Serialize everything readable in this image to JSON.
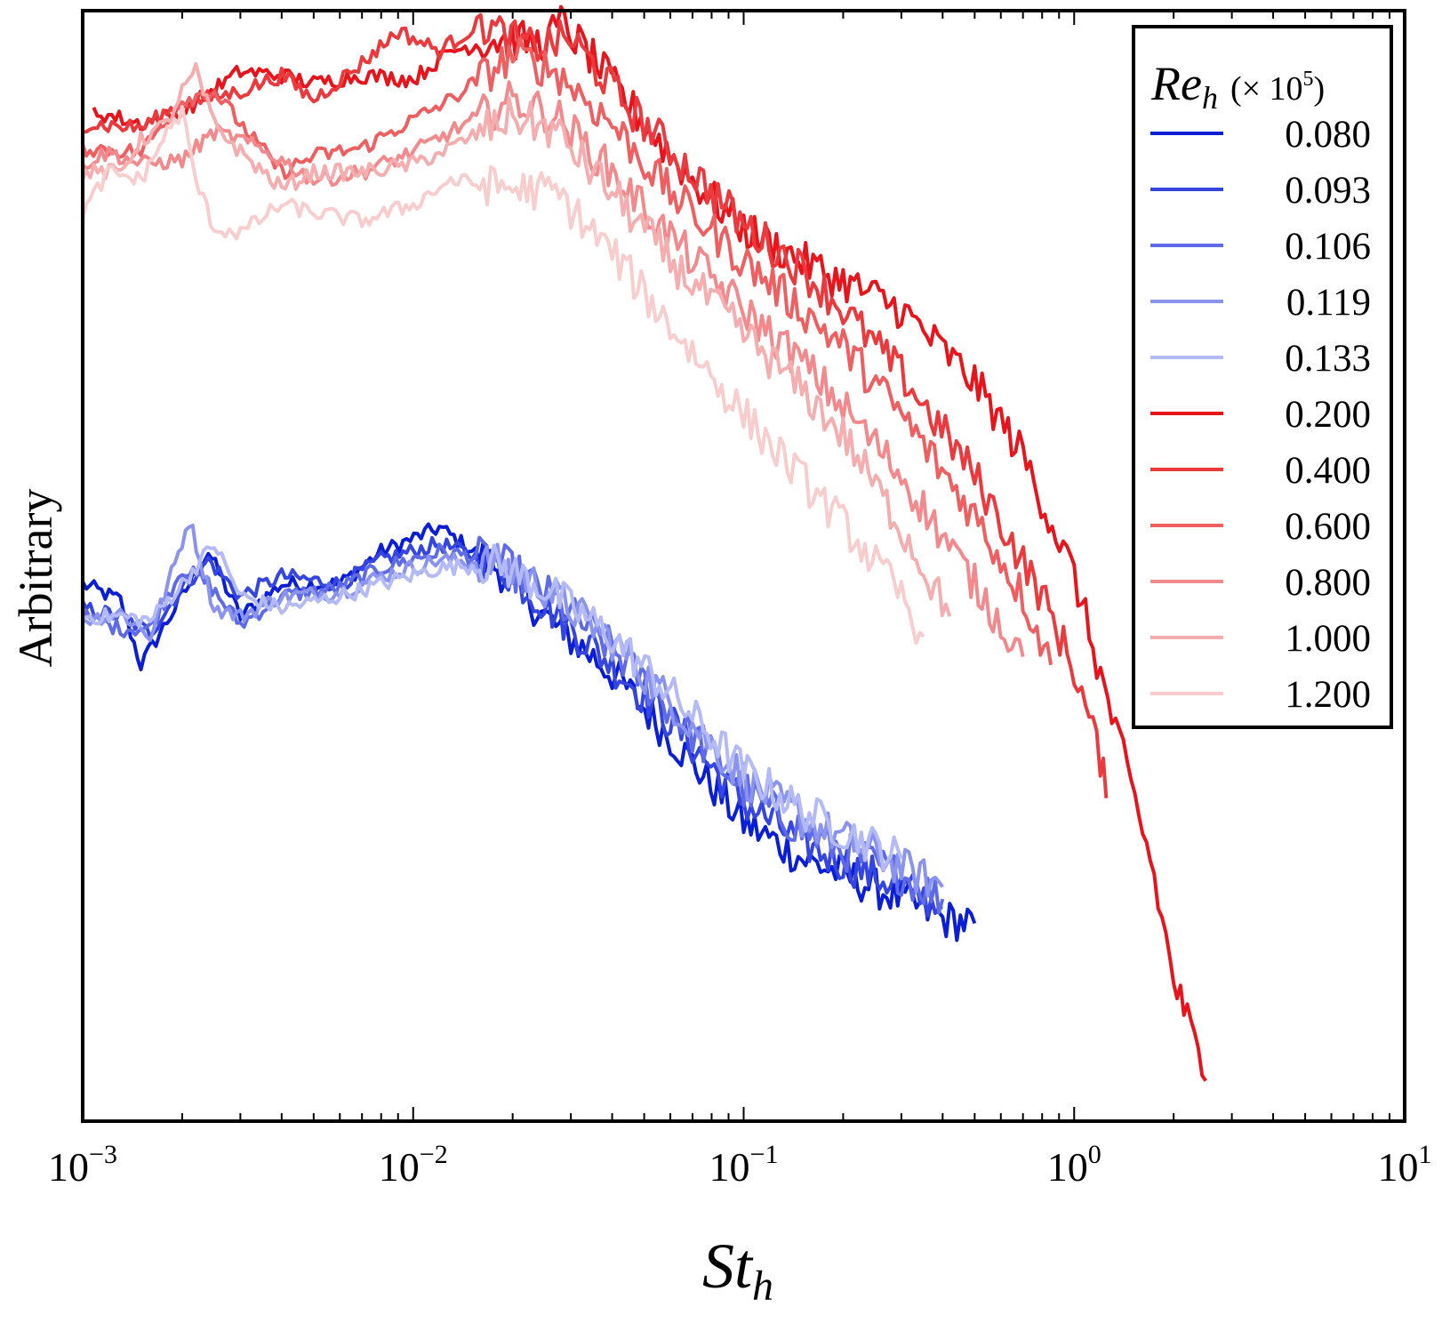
{
  "chart_data": {
    "type": "line",
    "xscale": "log",
    "xlim": [
      0.001,
      10
    ],
    "y_scale": "log",
    "y_ticks_labeled": false,
    "grid": false,
    "x_ticks": [
      {
        "base": "10",
        "exp": "−3"
      },
      {
        "base": "10",
        "exp": "−2"
      },
      {
        "base": "10",
        "exp": "−1"
      },
      {
        "base": "10",
        "exp": "0"
      },
      {
        "base": "10",
        "exp": "1"
      }
    ],
    "xlabel": {
      "main": "St",
      "sub": "h"
    },
    "ylabel": "Arbitrary",
    "legend": {
      "position": "top-right",
      "title_main": "Re",
      "title_sub": "h",
      "title_unit_prefix": "(× 10",
      "title_unit_exp": "5",
      "title_unit_suffix": ")"
    },
    "series": [
      {
        "name": "0.080",
        "color": "#0a1ed6",
        "group": "blue",
        "x": [
          0.001,
          0.0013,
          0.0015,
          0.002,
          0.0024,
          0.003,
          0.004,
          0.006,
          0.008,
          0.012,
          0.018,
          0.025,
          0.04,
          0.06,
          0.1,
          0.15,
          0.2,
          0.3,
          0.4,
          0.5
        ],
        "y": [
          0.58,
          0.54,
          0.38,
          0.55,
          0.66,
          0.5,
          0.58,
          0.58,
          0.66,
          0.72,
          0.62,
          0.5,
          0.36,
          0.2,
          -0.01,
          -0.1,
          -0.14,
          -0.2,
          -0.25,
          -0.26
        ]
      },
      {
        "name": "0.093",
        "color": "#3545df",
        "group": "blue",
        "x": [
          0.001,
          0.0013,
          0.0016,
          0.002,
          0.0024,
          0.003,
          0.004,
          0.006,
          0.008,
          0.012,
          0.018,
          0.025,
          0.04,
          0.06,
          0.1,
          0.15,
          0.2,
          0.3,
          0.4
        ],
        "y": [
          0.52,
          0.5,
          0.46,
          0.57,
          0.64,
          0.55,
          0.6,
          0.58,
          0.64,
          0.68,
          0.63,
          0.53,
          0.38,
          0.24,
          0.04,
          -0.06,
          -0.11,
          -0.17,
          -0.22
        ]
      },
      {
        "name": "0.106",
        "color": "#5f6be6",
        "group": "blue",
        "x": [
          0.001,
          0.0013,
          0.0016,
          0.002,
          0.0024,
          0.003,
          0.004,
          0.006,
          0.008,
          0.012,
          0.018,
          0.025,
          0.04,
          0.06,
          0.1,
          0.15,
          0.2,
          0.3,
          0.4
        ],
        "y": [
          0.5,
          0.47,
          0.47,
          0.62,
          0.58,
          0.48,
          0.55,
          0.57,
          0.62,
          0.66,
          0.64,
          0.56,
          0.42,
          0.27,
          0.07,
          -0.03,
          -0.08,
          -0.14,
          -0.2
        ]
      },
      {
        "name": "0.119",
        "color": "#8a93ee",
        "group": "blue",
        "x": [
          0.001,
          0.0013,
          0.0016,
          0.0019,
          0.0021,
          0.0025,
          0.003,
          0.004,
          0.006,
          0.008,
          0.012,
          0.018,
          0.025,
          0.04,
          0.06,
          0.1,
          0.15,
          0.2,
          0.3,
          0.4
        ],
        "y": [
          0.49,
          0.51,
          0.45,
          0.63,
          0.74,
          0.52,
          0.5,
          0.55,
          0.56,
          0.6,
          0.64,
          0.63,
          0.57,
          0.44,
          0.29,
          0.1,
          0.0,
          -0.05,
          -0.12,
          -0.17
        ]
      },
      {
        "name": "0.133",
        "color": "#b4baf5",
        "group": "blue",
        "x": [
          0.001,
          0.0013,
          0.0016,
          0.002,
          0.0025,
          0.003,
          0.004,
          0.006,
          0.008,
          0.012,
          0.018,
          0.025,
          0.04,
          0.06,
          0.1,
          0.15,
          0.2,
          0.3
        ],
        "y": [
          0.5,
          0.5,
          0.49,
          0.58,
          0.68,
          0.55,
          0.52,
          0.55,
          0.58,
          0.62,
          0.63,
          0.57,
          0.45,
          0.31,
          0.12,
          0.02,
          -0.03,
          -0.1
        ]
      },
      {
        "name": "0.200",
        "color": "#e8141c",
        "group": "red",
        "x": [
          0.00108,
          0.0015,
          0.002,
          0.003,
          0.004,
          0.005,
          0.007,
          0.01,
          0.013,
          0.018,
          0.025,
          0.028,
          0.035,
          0.05,
          0.07,
          0.1,
          0.15,
          0.2,
          0.3,
          0.5,
          0.7,
          1.0,
          1.3,
          1.7,
          2.0,
          2.2,
          2.5
        ],
        "y": [
          1.75,
          1.72,
          1.75,
          1.85,
          1.84,
          1.82,
          1.84,
          1.83,
          1.9,
          1.93,
          1.92,
          1.97,
          1.88,
          1.72,
          1.58,
          1.46,
          1.38,
          1.33,
          1.26,
          1.08,
          0.9,
          0.6,
          0.25,
          -0.1,
          -0.4,
          -0.5,
          -0.65
        ]
      },
      {
        "name": "0.400",
        "color": "#eb3a3e",
        "group": "red",
        "x": [
          0.001,
          0.0015,
          0.002,
          0.003,
          0.004,
          0.005,
          0.007,
          0.009,
          0.012,
          0.016,
          0.022,
          0.03,
          0.045,
          0.07,
          0.1,
          0.15,
          0.2,
          0.3,
          0.5,
          0.8,
          1.0,
          1.2,
          1.25
        ],
        "y": [
          1.72,
          1.71,
          1.77,
          1.8,
          1.84,
          1.78,
          1.87,
          1.95,
          1.9,
          1.97,
          1.91,
          1.93,
          1.76,
          1.6,
          1.47,
          1.36,
          1.26,
          1.1,
          0.85,
          0.55,
          0.37,
          0.15,
          0.05
        ]
      },
      {
        "name": "0.600",
        "color": "#ee5f62",
        "group": "red",
        "x": [
          0.001,
          0.0015,
          0.002,
          0.0025,
          0.0033,
          0.004,
          0.005,
          0.007,
          0.01,
          0.013,
          0.02,
          0.027,
          0.04,
          0.06,
          0.1,
          0.15,
          0.2,
          0.3,
          0.5,
          0.7,
          0.85
        ],
        "y": [
          1.66,
          1.65,
          1.78,
          1.8,
          1.68,
          1.6,
          1.64,
          1.66,
          1.73,
          1.78,
          1.89,
          1.85,
          1.72,
          1.55,
          1.38,
          1.26,
          1.17,
          1.0,
          0.75,
          0.55,
          0.38
        ]
      },
      {
        "name": "0.800",
        "color": "#f28a8d",
        "group": "red",
        "x": [
          0.001,
          0.0012,
          0.0015,
          0.002,
          0.0025,
          0.003,
          0.004,
          0.005,
          0.007,
          0.01,
          0.013,
          0.02,
          0.027,
          0.04,
          0.06,
          0.1,
          0.15,
          0.2,
          0.3,
          0.5,
          0.7
        ],
        "y": [
          1.62,
          1.65,
          1.62,
          1.63,
          1.7,
          1.68,
          1.63,
          1.58,
          1.6,
          1.65,
          1.7,
          1.78,
          1.74,
          1.6,
          1.44,
          1.26,
          1.13,
          1.02,
          0.85,
          0.58,
          0.4
        ]
      },
      {
        "name": "1.000",
        "color": "#f5aeb0",
        "group": "red",
        "x": [
          0.001,
          0.0013,
          0.0015,
          0.0018,
          0.002,
          0.0022,
          0.0025,
          0.003,
          0.004,
          0.005,
          0.007,
          0.01,
          0.013,
          0.02,
          0.027,
          0.04,
          0.06,
          0.1,
          0.15,
          0.2,
          0.3,
          0.42
        ],
        "y": [
          1.6,
          1.6,
          1.68,
          1.72,
          1.8,
          1.85,
          1.72,
          1.65,
          1.56,
          1.6,
          1.6,
          1.62,
          1.66,
          1.74,
          1.7,
          1.55,
          1.38,
          1.2,
          1.06,
          0.95,
          0.72,
          0.5
        ]
      },
      {
        "name": "1.200",
        "color": "#f8cdcd",
        "group": "red",
        "x": [
          0.001,
          0.0012,
          0.0015,
          0.0018,
          0.002,
          0.0022,
          0.0025,
          0.003,
          0.004,
          0.005,
          0.007,
          0.01,
          0.013,
          0.02,
          0.027,
          0.04,
          0.06,
          0.1,
          0.15,
          0.2,
          0.3,
          0.35
        ],
        "y": [
          1.5,
          1.6,
          1.58,
          1.7,
          1.75,
          1.58,
          1.46,
          1.45,
          1.52,
          1.5,
          1.48,
          1.52,
          1.58,
          1.56,
          1.55,
          1.4,
          1.22,
          1.0,
          0.84,
          0.73,
          0.55,
          0.45
        ]
      }
    ]
  }
}
